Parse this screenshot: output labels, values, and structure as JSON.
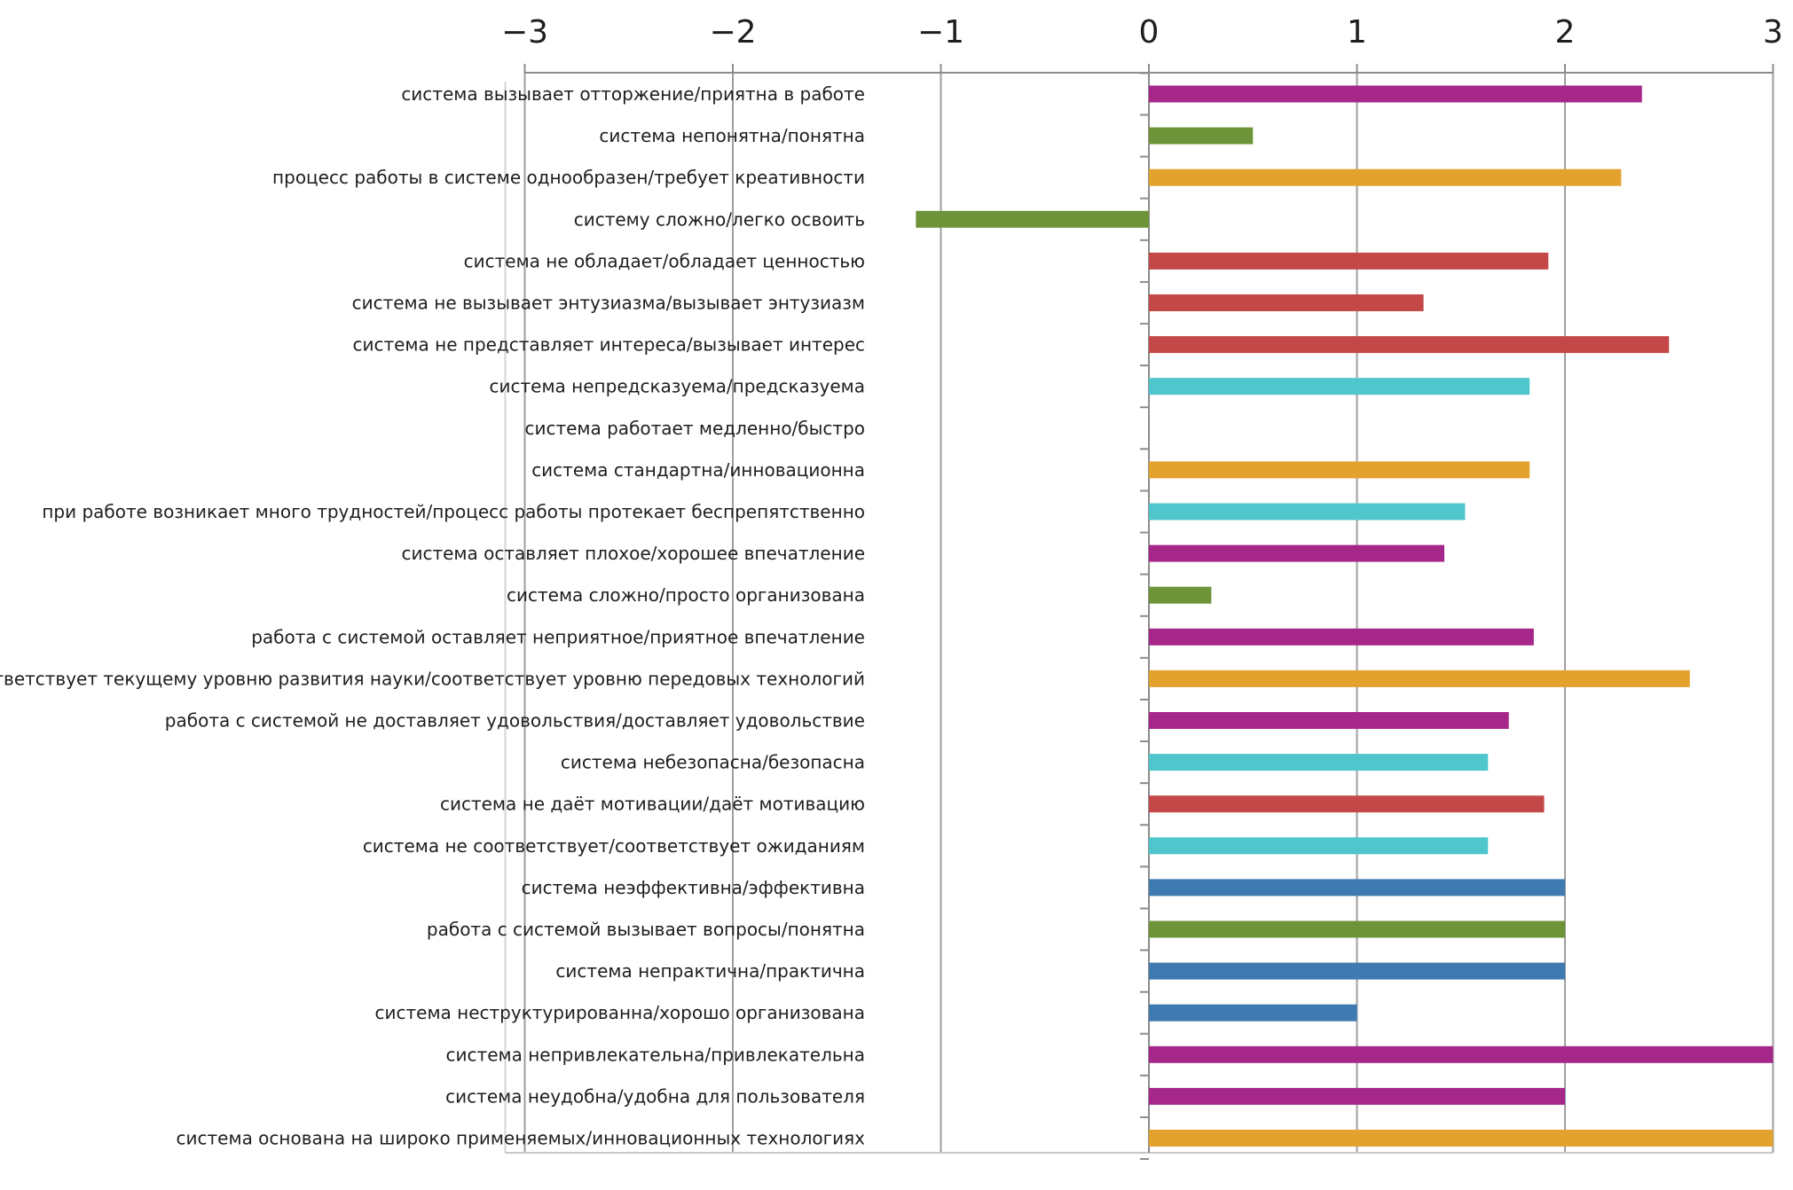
{
  "chart_data": {
    "type": "bar",
    "orientation": "horizontal",
    "title": "",
    "xlabel": "",
    "ylabel": "",
    "xlim": [
      -3,
      3
    ],
    "x_ticks": [
      -3,
      -2,
      -1,
      0,
      1,
      2,
      3
    ],
    "x_tick_labels": [
      "−3",
      "−2",
      "−1",
      "0",
      "1",
      "2",
      "3"
    ],
    "grid": "vertical",
    "legend": "none",
    "colors": {
      "magenta": "#A6278A",
      "green": "#6E943A",
      "orange": "#E3A22D",
      "red": "#C44848",
      "cyan": "#4FC6CB",
      "blue": "#3F7AB0",
      "grid": "#9E9E9E",
      "axis": "#8C8C8C"
    },
    "bars": [
      {
        "label": "система вызывает отторжение/приятна в работе",
        "value": 2.37,
        "color": "magenta"
      },
      {
        "label": "система непонятна/понятна",
        "value": 0.5,
        "color": "green"
      },
      {
        "label": "процесс работы в системе однообразен/требует креативности",
        "value": 2.27,
        "color": "orange"
      },
      {
        "label": "систему сложно/легко освоить",
        "value": -1.12,
        "color": "green"
      },
      {
        "label": "система не обладает/обладает ценностью",
        "value": 1.92,
        "color": "red"
      },
      {
        "label": "система не вызывает энтузиазма/вызывает энтузиазм",
        "value": 1.32,
        "color": "red"
      },
      {
        "label": "система не представляет интереса/вызывает интерес",
        "value": 2.5,
        "color": "red"
      },
      {
        "label": "система непредсказуема/предсказуема",
        "value": 1.83,
        "color": "cyan"
      },
      {
        "label": "система работает медленно/быстро",
        "value": 0,
        "color": "cyan"
      },
      {
        "label": "система стандартна/инновационна",
        "value": 1.83,
        "color": "orange"
      },
      {
        "label": "при работе возникает много трудностей/процесс работы протекает беспрепятственно",
        "value": 1.52,
        "color": "cyan"
      },
      {
        "label": "система оставляет плохое/хорошее впечатление",
        "value": 1.42,
        "color": "magenta"
      },
      {
        "label": "система сложно/просто организована",
        "value": 0.3,
        "color": "green"
      },
      {
        "label": "работа с системой оставляет неприятное/приятное впечатление",
        "value": 1.85,
        "color": "magenta"
      },
      {
        "label": "система соответствует текущему уровню развития науки/соответствует уровню передовых технологий",
        "value": 2.6,
        "color": "orange"
      },
      {
        "label": "работа с системой не доставляет удовольствия/доставляет удовольствие",
        "value": 1.73,
        "color": "magenta"
      },
      {
        "label": "система небезопасна/безопасна",
        "value": 1.63,
        "color": "cyan"
      },
      {
        "label": "система не даёт мотивации/даёт мотивацию",
        "value": 1.9,
        "color": "red"
      },
      {
        "label": "система не соответствует/соответствует ожиданиям",
        "value": 1.63,
        "color": "cyan"
      },
      {
        "label": "система неэффективна/эффективна",
        "value": 2.0,
        "color": "blue"
      },
      {
        "label": "работа с системой вызывает вопросы/понятна",
        "value": 2.0,
        "color": "green"
      },
      {
        "label": "система непрактична/практична",
        "value": 2.0,
        "color": "blue"
      },
      {
        "label": "система неструктурированна/хорошо организована",
        "value": 1.0,
        "color": "blue"
      },
      {
        "label": "система непривлекательна/привлекательна",
        "value": 3.0,
        "color": "magenta"
      },
      {
        "label": "система неудобна/удобна для пользователя",
        "value": 2.0,
        "color": "magenta"
      },
      {
        "label": "система основана на широко применяемых/инновационных технологиях",
        "value": 3.0,
        "color": "orange"
      }
    ]
  }
}
